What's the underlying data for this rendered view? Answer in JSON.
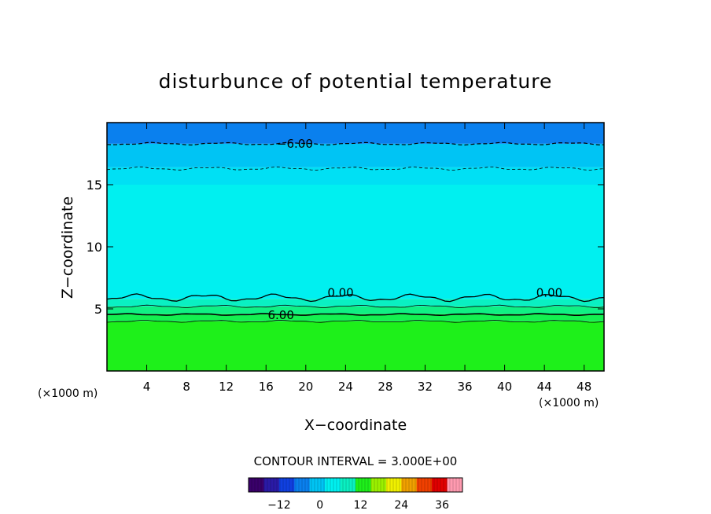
{
  "chart_data": {
    "type": "heatmap",
    "title": "disturbunce of potential temperature",
    "xlabel": "X−coordinate",
    "ylabel": "Z−coordinate",
    "x_unit_left": "(×1000 m)",
    "x_unit_right": "(×1000 m)",
    "xlim": [
      0,
      50
    ],
    "ylim": [
      0,
      20
    ],
    "x_ticks": [
      4,
      8,
      12,
      16,
      20,
      24,
      28,
      32,
      36,
      40,
      44,
      48
    ],
    "y_ticks": [
      5,
      10,
      15
    ],
    "contour_interval_label": "CONTOUR INTERVAL = 3.000E+00",
    "contour_labels": [
      {
        "text": "−6.00",
        "x": 18.9,
        "z": 18.3
      },
      {
        "text": "0.00",
        "x": 23.5,
        "z": 6.3
      },
      {
        "text": "0.00",
        "x": 44.5,
        "z": 6.3
      },
      {
        "text": "6.00",
        "x": 17.5,
        "z": 4.5
      }
    ],
    "bands": [
      {
        "z_from": 0.0,
        "z_to": 4.0,
        "value": 15,
        "color": "#1ef01a"
      },
      {
        "z_from": 4.0,
        "z_to": 4.6,
        "value": 9,
        "color": "#14f050"
      },
      {
        "z_from": 4.6,
        "z_to": 5.2,
        "value": 6,
        "color": "#10f084"
      },
      {
        "z_from": 5.2,
        "z_to": 5.8,
        "value": 3,
        "color": "#0af0c2"
      },
      {
        "z_from": 5.8,
        "z_to": 15.0,
        "value": 0,
        "color": "#00f0f0"
      },
      {
        "z_from": 15.0,
        "z_to": 16.4,
        "value": -1,
        "color": "#00e0f4"
      },
      {
        "z_from": 16.4,
        "z_to": 18.3,
        "value": -4,
        "color": "#00c4f4"
      },
      {
        "z_from": 18.3,
        "z_to": 20.0,
        "value": -7,
        "color": "#0a80ee"
      }
    ],
    "colorbar": {
      "ticks": [
        -12,
        0,
        12,
        24,
        36
      ],
      "range": [
        -21,
        42
      ]
    },
    "colormap": [
      "#3a006a",
      "#2a1aa6",
      "#1040e0",
      "#0a80ee",
      "#00c4f4",
      "#00f0f0",
      "#0af0c2",
      "#1ef01a",
      "#9af000",
      "#f0f000",
      "#f0a000",
      "#f04000",
      "#e00000",
      "#ff9ab0"
    ]
  }
}
